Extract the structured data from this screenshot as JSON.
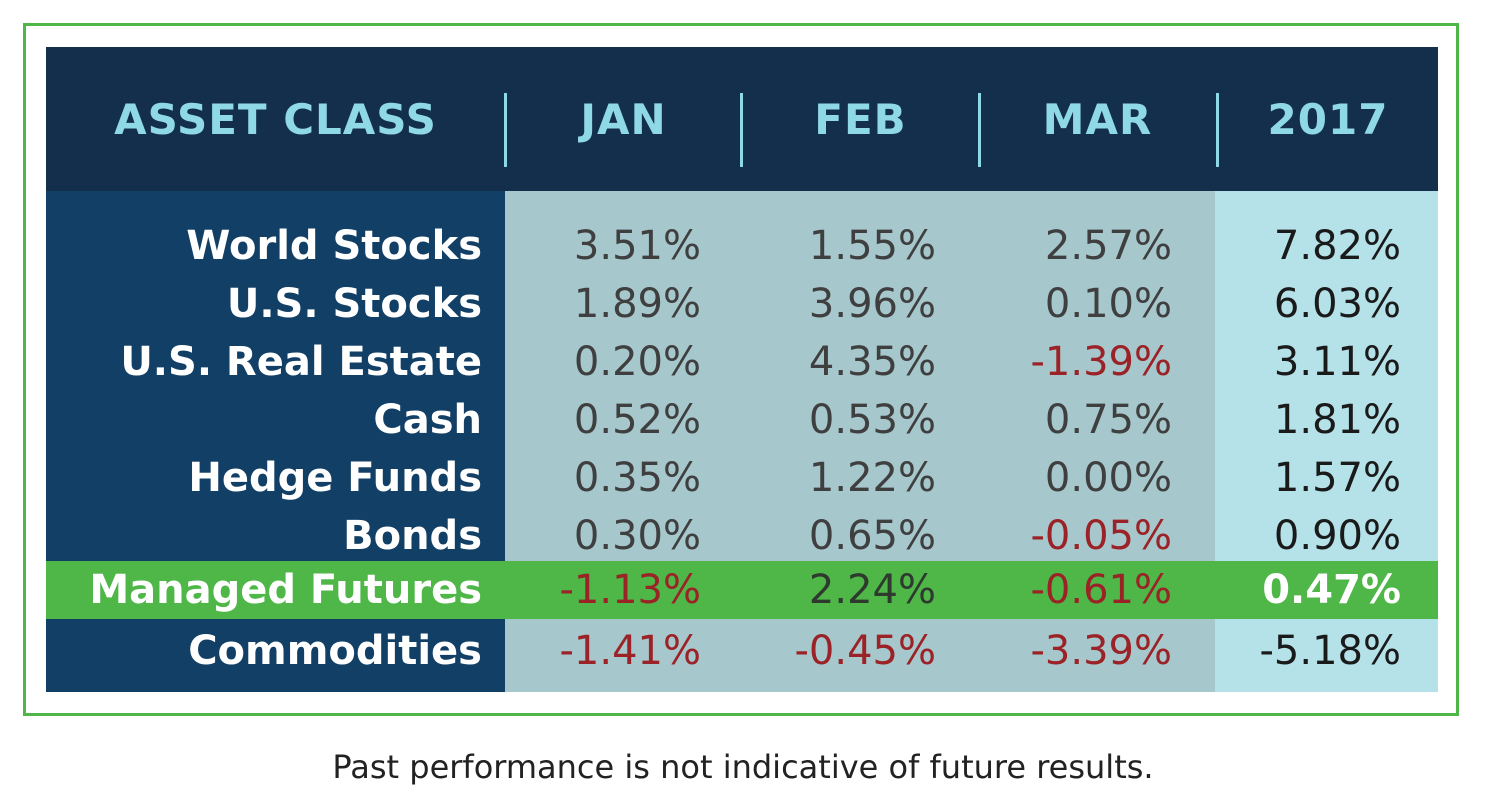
{
  "chart_data": {
    "type": "table",
    "columns": [
      "ASSET CLASS",
      "JAN",
      "FEB",
      "MAR",
      "2017"
    ],
    "rows": [
      {
        "label": "World Stocks",
        "values": [
          "3.51%",
          "1.55%",
          "2.57%",
          "7.82%"
        ],
        "highlight": false
      },
      {
        "label": "U.S. Stocks",
        "values": [
          "1.89%",
          "3.96%",
          "0.10%",
          "6.03%"
        ],
        "highlight": false
      },
      {
        "label": "U.S. Real Estate",
        "values": [
          "0.20%",
          "4.35%",
          "-1.39%",
          "3.11%"
        ],
        "highlight": false
      },
      {
        "label": "Cash",
        "values": [
          "0.52%",
          "0.53%",
          "0.75%",
          "1.81%"
        ],
        "highlight": false
      },
      {
        "label": "Hedge Funds",
        "values": [
          "0.35%",
          "1.22%",
          "0.00%",
          "1.57%"
        ],
        "highlight": false
      },
      {
        "label": "Bonds",
        "values": [
          "0.30%",
          "0.65%",
          "-0.05%",
          "0.90%"
        ],
        "highlight": false
      },
      {
        "label": "Managed Futures",
        "values": [
          "-1.13%",
          "2.24%",
          "-0.61%",
          "0.47%"
        ],
        "highlight": true
      },
      {
        "label": "Commodities",
        "values": [
          "-1.41%",
          "-0.45%",
          "-3.39%",
          "-5.18%"
        ],
        "highlight": false
      }
    ]
  },
  "footnote": "Past performance is not indicative of future results.",
  "colors": {
    "header_bg": "#142f4c",
    "header_text": "#8fd8e6",
    "label_bg": "#123f66",
    "months_bg": "#a6c8cd",
    "year_bg": "#b5e2e9",
    "highlight": "#4eb748",
    "negative": "#9b2226",
    "frame": "#4eb748"
  }
}
